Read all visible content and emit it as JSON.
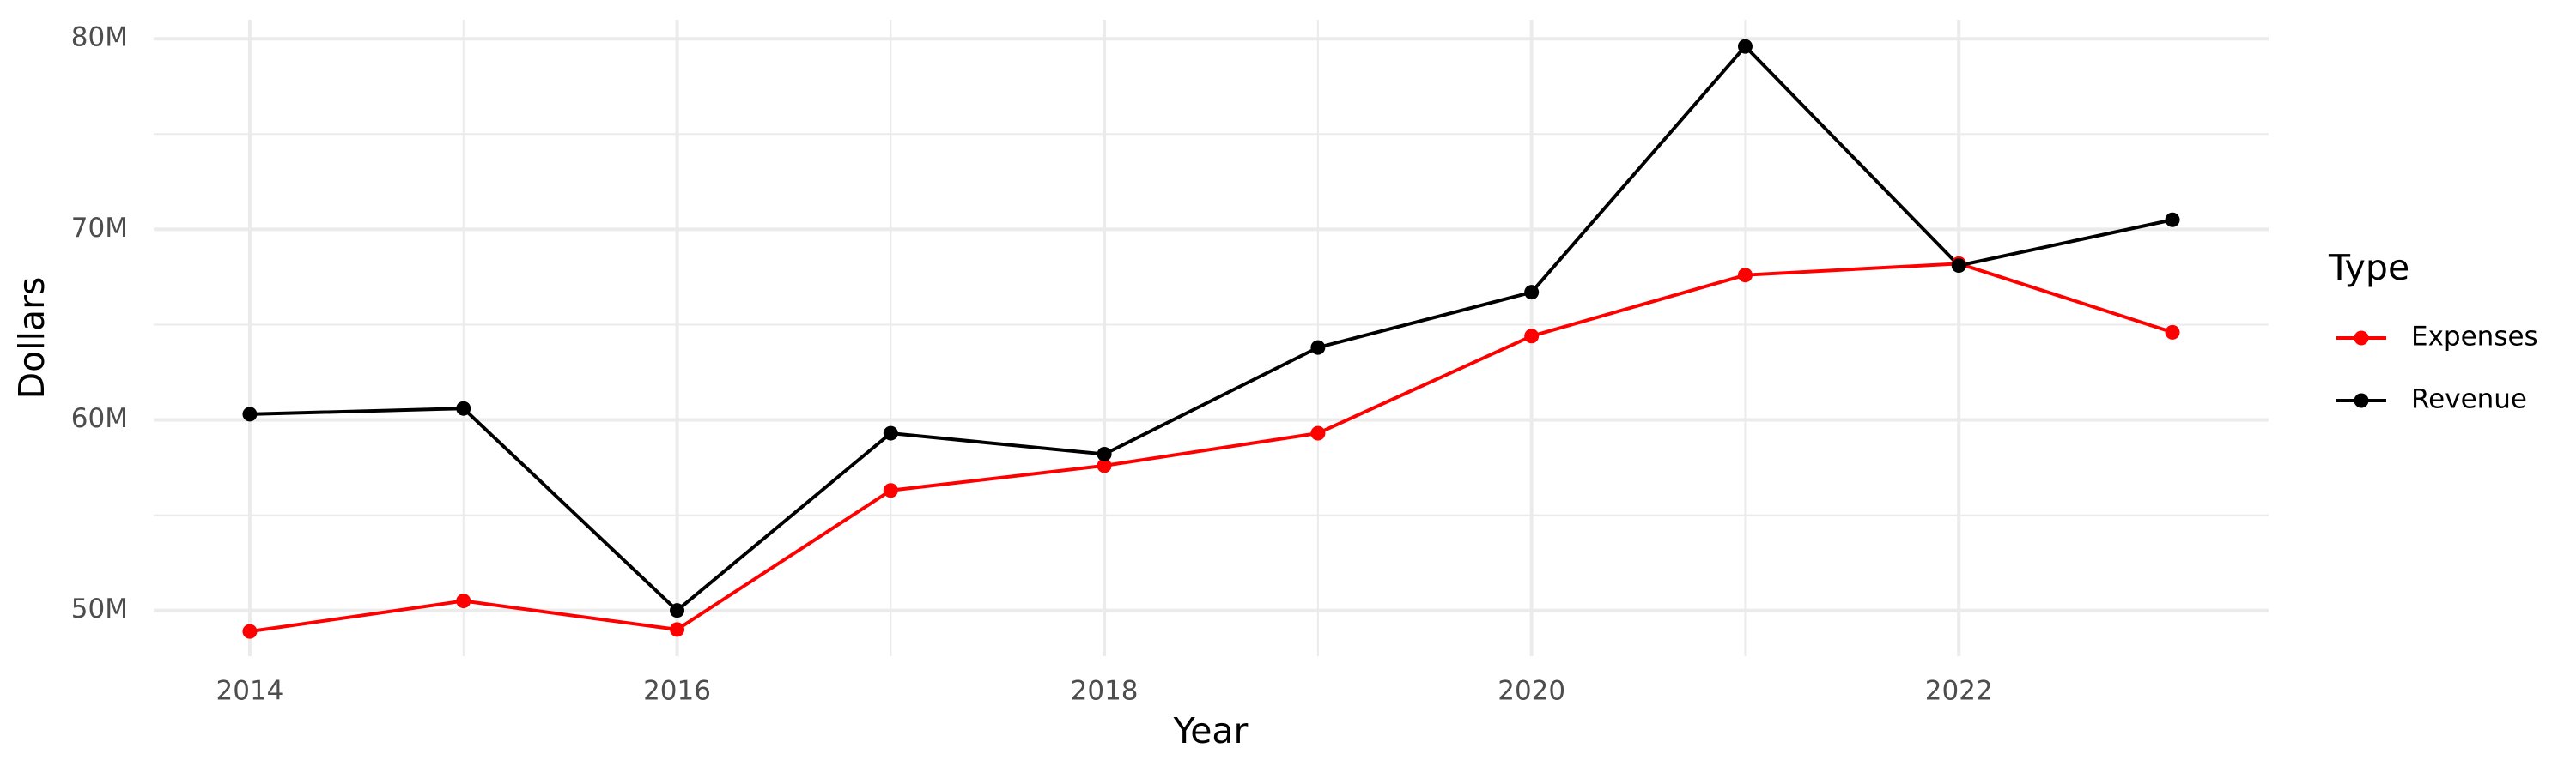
{
  "chart_data": {
    "type": "line",
    "x_label": "Year",
    "y_label": "Dollars",
    "legend_title": "Type",
    "x": [
      2014,
      2015,
      2016,
      2017,
      2018,
      2019,
      2020,
      2021,
      2022,
      2023
    ],
    "series": [
      {
        "name": "Expenses",
        "color": "#ff0000",
        "values": [
          48900000,
          50500000,
          49000000,
          56300000,
          57600000,
          59300000,
          64400000,
          67600000,
          68200000,
          64600000
        ]
      },
      {
        "name": "Revenue",
        "color": "#000000",
        "values": [
          60300000,
          60600000,
          50000000,
          59300000,
          58200000,
          63800000,
          66700000,
          79600000,
          68100000,
          70500000
        ]
      }
    ],
    "xlim": [
      2013.55,
      2023.45
    ],
    "xticks": [
      2014,
      2016,
      2018,
      2020,
      2022
    ],
    "ylim": [
      47600000,
      81000000
    ],
    "yticks": [
      {
        "value": 50000000,
        "label": "50M"
      },
      {
        "value": 60000000,
        "label": "60M"
      },
      {
        "value": 70000000,
        "label": "70M"
      },
      {
        "value": 80000000,
        "label": "80M"
      }
    ],
    "grid": true,
    "legend_position": "right"
  }
}
